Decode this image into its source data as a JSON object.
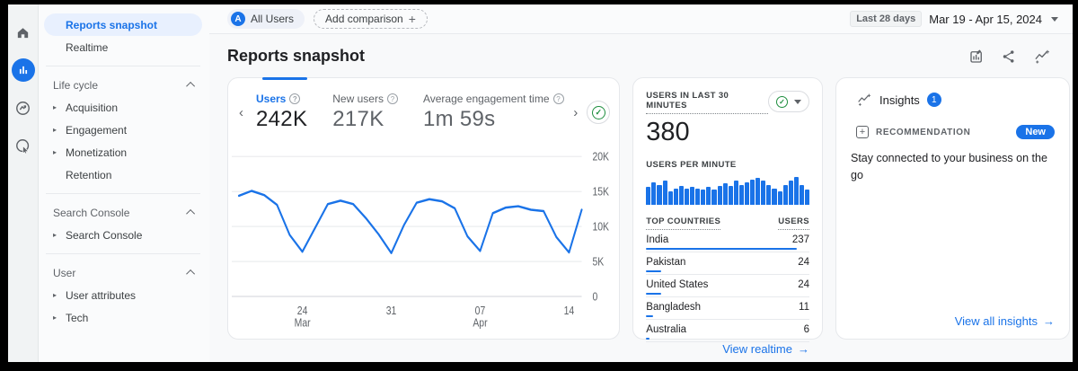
{
  "app": {
    "accent_color": "#1a73e8",
    "green_color": "#1e8e3e"
  },
  "icon_rail": {
    "items": [
      {
        "name": "home",
        "active": false
      },
      {
        "name": "reports",
        "active": true
      },
      {
        "name": "explore",
        "active": false
      },
      {
        "name": "advertising",
        "active": false
      }
    ]
  },
  "sidebar": {
    "top_items": [
      {
        "label": "Reports snapshot",
        "active": true,
        "expandable": false
      },
      {
        "label": "Realtime",
        "active": false,
        "expandable": false
      }
    ],
    "groups": [
      {
        "header": "Life cycle",
        "items": [
          {
            "label": "Acquisition",
            "expandable": true
          },
          {
            "label": "Engagement",
            "expandable": true
          },
          {
            "label": "Monetization",
            "expandable": true
          },
          {
            "label": "Retention",
            "expandable": false
          }
        ]
      },
      {
        "header": "Search Console",
        "items": [
          {
            "label": "Search Console",
            "expandable": true
          }
        ]
      },
      {
        "header": "User",
        "items": [
          {
            "label": "User attributes",
            "expandable": true
          },
          {
            "label": "Tech",
            "expandable": true
          }
        ]
      }
    ]
  },
  "topbar": {
    "all_users_initial": "A",
    "all_users_label": "All Users",
    "add_comparison_label": "Add comparison",
    "plus": "+",
    "date_range_tag": "Last 28 days",
    "date_range": "Mar 19 - Apr 15, 2024"
  },
  "header": {
    "title": "Reports snapshot"
  },
  "overview_card": {
    "metrics": [
      {
        "label": "Users",
        "value": "242K",
        "selected": true
      },
      {
        "label": "New users",
        "value": "217K",
        "selected": false
      },
      {
        "label": "Average engagement time",
        "value": "1m 59s",
        "selected": false
      }
    ]
  },
  "realtime_card": {
    "title": "USERS IN LAST 30 MINUTES",
    "value": "380",
    "per_minute_label": "USERS PER MINUTE",
    "table": {
      "col_country": "TOP COUNTRIES",
      "col_users": "USERS",
      "rows": [
        {
          "country": "India",
          "users": 237
        },
        {
          "country": "Pakistan",
          "users": 24
        },
        {
          "country": "United States",
          "users": 24
        },
        {
          "country": "Bangladesh",
          "users": 11
        },
        {
          "country": "Australia",
          "users": 6
        }
      ]
    },
    "link": "View realtime",
    "arrow": "→"
  },
  "insights_card": {
    "title": "Insights",
    "badge": "1",
    "recommendation_label": "RECOMMENDATION",
    "recommendation_icon": "+",
    "new_badge": "New",
    "text": "Stay connected to your business on the go",
    "link": "View all insights",
    "arrow": "→"
  },
  "chart_data": [
    {
      "type": "line",
      "title": "Users (last 28 days)",
      "color": "#1a73e8",
      "x": [
        "Mar 19",
        "Mar 20",
        "Mar 21",
        "Mar 22",
        "Mar 23",
        "Mar 24",
        "Mar 25",
        "Mar 26",
        "Mar 27",
        "Mar 28",
        "Mar 29",
        "Mar 30",
        "Mar 31",
        "Apr 1",
        "Apr 2",
        "Apr 3",
        "Apr 4",
        "Apr 5",
        "Apr 6",
        "Apr 7",
        "Apr 8",
        "Apr 9",
        "Apr 10",
        "Apr 11",
        "Apr 12",
        "Apr 13",
        "Apr 14",
        "Apr 15"
      ],
      "values": [
        14400,
        15100,
        14500,
        13100,
        8800,
        6400,
        9800,
        13200,
        13700,
        13200,
        11200,
        8900,
        6200,
        10200,
        13400,
        13900,
        13600,
        12600,
        8600,
        6500,
        11900,
        12700,
        12900,
        12400,
        12200,
        8500,
        6300,
        12400
      ],
      "ylim": [
        0,
        20000
      ],
      "yticks": [
        {
          "v": 0,
          "label": "0"
        },
        {
          "v": 5000,
          "label": "5K"
        },
        {
          "v": 10000,
          "label": "10K"
        },
        {
          "v": 15000,
          "label": "15K"
        },
        {
          "v": 20000,
          "label": "20K"
        }
      ],
      "xticks": [
        {
          "index": 5,
          "line1": "24",
          "line2": "Mar"
        },
        {
          "index": 12,
          "line1": "31",
          "line2": ""
        },
        {
          "index": 19,
          "line1": "07",
          "line2": "Apr"
        },
        {
          "index": 26,
          "line1": "14",
          "line2": ""
        }
      ],
      "grid": true,
      "legend": "none"
    },
    {
      "type": "bar",
      "title": "Users per minute (last 30 minutes)",
      "color": "#1a73e8",
      "values": [
        11,
        15,
        13,
        16,
        8,
        10,
        12,
        10,
        11,
        10,
        9,
        11,
        9,
        12,
        14,
        12,
        16,
        13,
        15,
        17,
        18,
        16,
        13,
        10,
        8,
        13,
        16,
        19,
        13,
        9
      ],
      "ylim": [
        0,
        20
      ],
      "grid": false,
      "legend": "none"
    }
  ]
}
